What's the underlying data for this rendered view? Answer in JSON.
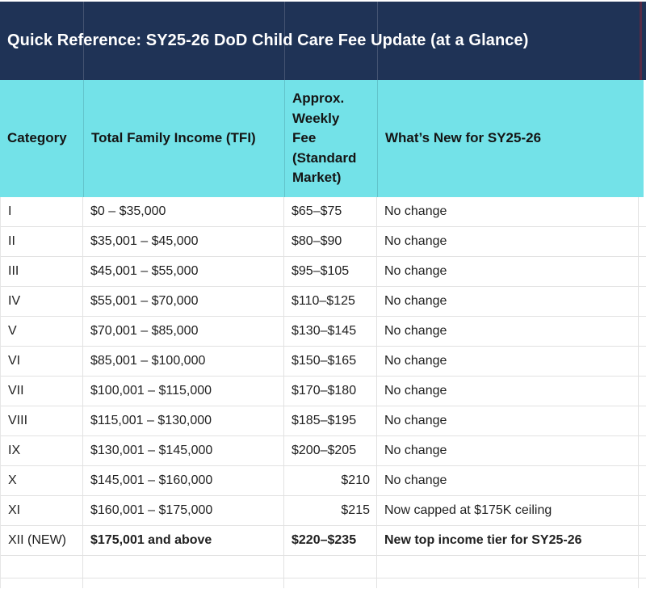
{
  "title": "Quick Reference: SY25-26 DoD Child Care Fee Update (at a Glance)",
  "table": {
    "columns": [
      {
        "id": "category",
        "label": "Category"
      },
      {
        "id": "tfi",
        "label": "Total Family Income (TFI)"
      },
      {
        "id": "fee",
        "label": "Approx.\nWeekly\nFee\n(Standard\nMarket)"
      },
      {
        "id": "whats_new",
        "label": "What’s New for SY25-26"
      }
    ],
    "rows": [
      {
        "category": "I",
        "tfi": "$0 – $35,000",
        "fee": "$65–$75",
        "whats_new": "No change"
      },
      {
        "category": "II",
        "tfi": "$35,001 – $45,000",
        "fee": "$80–$90",
        "whats_new": "No change"
      },
      {
        "category": "III",
        "tfi": "$45,001 – $55,000",
        "fee": "$95–$105",
        "whats_new": "No change"
      },
      {
        "category": "IV",
        "tfi": "$55,001 – $70,000",
        "fee": "$110–$125",
        "whats_new": "No change"
      },
      {
        "category": "V",
        "tfi": "$70,001 – $85,000",
        "fee": "$130–$145",
        "whats_new": "No change"
      },
      {
        "category": "VI",
        "tfi": "$85,001 – $100,000",
        "fee": "$150–$165",
        "whats_new": "No change"
      },
      {
        "category": "VII",
        "tfi": "$100,001 – $115,000",
        "fee": "$170–$180",
        "whats_new": "No change"
      },
      {
        "category": "VIII",
        "tfi": "$115,001 – $130,000",
        "fee": "$185–$195",
        "whats_new": "No change"
      },
      {
        "category": "IX",
        "tfi": "$130,001 – $145,000",
        "fee": "$200–$205",
        "whats_new": "No change"
      },
      {
        "category": "X",
        "tfi": "$145,001 – $160,000",
        "fee": "$210",
        "whats_new": "No change"
      },
      {
        "category": "XI",
        "tfi": "$160,001 – $175,000",
        "fee": "$215",
        "whats_new": "Now capped at $175K ceiling"
      },
      {
        "category": "XII (NEW)",
        "tfi": "$175,001 and above",
        "fee": "$220–$235",
        "whats_new": "New top income tier for SY25-26"
      }
    ]
  },
  "colors": {
    "title_bar_bg": "#1F3356",
    "title_text": "#FFFFFF",
    "header_row_bg": "#73E2E8",
    "header_text": "#141414",
    "body_text": "#212121",
    "gridline": "#E2E2E2",
    "right_edge_sliver": "#572B45"
  }
}
